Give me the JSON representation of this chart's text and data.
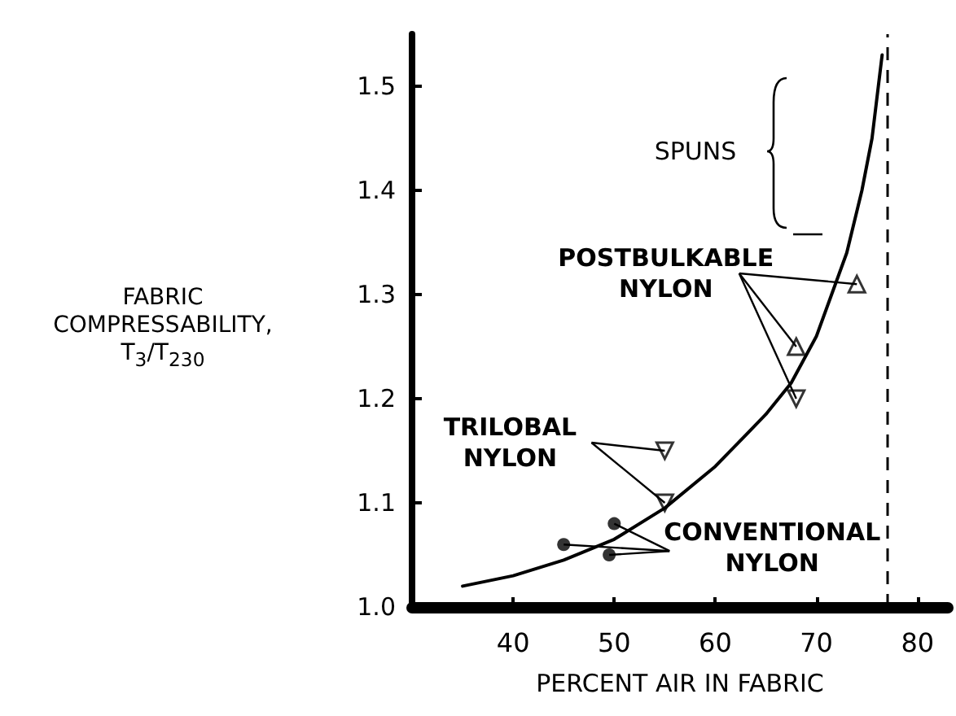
{
  "chart_data": {
    "type": "scatter",
    "xlabel": "PERCENT AIR IN FABRIC",
    "ylabel": "FABRIC\nCOMPRESSABILITY,\nT$_{3}$/T$_{230}$",
    "xlim": [
      30,
      83
    ],
    "xticks": [
      40,
      50,
      60,
      70,
      80
    ],
    "ylim": [
      1.0,
      1.55
    ],
    "yticks": [
      {
        "value": 1.0,
        "label": "1.0"
      },
      1.1,
      1.2,
      1.3,
      1.4,
      1.5
    ],
    "grid": false,
    "series": [
      {
        "name": "CONVENTIONAL\nNYLON",
        "color": "#000000",
        "marker": "circle",
        "x": [
          45,
          49.5,
          50
        ],
        "values": [
          1.06,
          1.05,
          1.08
        ]
      },
      {
        "name": "TRILOBAL\nNYLON",
        "color": "#000000",
        "marker": "triangle-down",
        "x": [
          55,
          55
        ],
        "values": [
          1.15,
          1.1
        ]
      },
      {
        "name": "POSTBULKABLE\nNYLON",
        "color": "#000000",
        "marker": "triangle",
        "x": [
          68,
          74
        ],
        "values": [
          1.25,
          1.31
        ]
      },
      {
        "color": "#000000",
        "marker": "triangle-down",
        "x": [
          68
        ],
        "values": [
          1.2
        ]
      },
      {
        "type": "line",
        "color": "#000000",
        "marker": "none",
        "x": [
          35,
          40,
          45,
          50,
          55,
          60,
          63,
          65,
          67.5,
          70,
          71.5,
          73,
          74.5,
          75.5,
          76.5
        ],
        "values": [
          1.02,
          1.03,
          1.045,
          1.065,
          1.095,
          1.135,
          1.165,
          1.185,
          1.215,
          1.26,
          1.3,
          1.34,
          1.4,
          1.45,
          1.53
        ]
      }
    ],
    "ref_lines": [
      {
        "axis": "x",
        "value": 77,
        "line_style": "dashed"
      }
    ],
    "annotations": [
      "SPUNS"
    ]
  }
}
